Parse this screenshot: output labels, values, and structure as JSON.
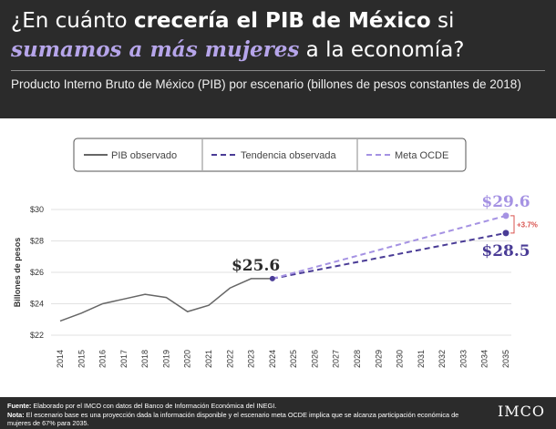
{
  "header": {
    "title_part1": "¿En cuánto ",
    "title_bold": "crecería el PIB de México",
    "title_part2": " si",
    "title_highlight": "sumamos a más mujeres",
    "title_part3": " a la economía?",
    "subtitle": "Producto Interno Bruto de México (PIB) por escenario (billones de pesos constantes de 2018)"
  },
  "footer": {
    "source_label": "Fuente:",
    "source_text": " Elaborado por el IMCO con datos del Banco de Información Económica del INEGI.",
    "note_label": "Nota:",
    "note_text": " El escenario base es una proyección dada la información disponible y el escenario meta OCDE implica que se alcanza participación económica de mujeres de 67% para 2035.",
    "logo_text": "IMCO"
  },
  "chart_data": {
    "type": "line",
    "ylabel": "Billones de pesos",
    "ylim": [
      22,
      31
    ],
    "yticks": [
      22,
      24,
      26,
      28,
      30
    ],
    "ytick_labels": [
      "$22",
      "$24",
      "$26",
      "$28",
      "$30"
    ],
    "x": [
      2014,
      2015,
      2016,
      2017,
      2018,
      2019,
      2020,
      2021,
      2022,
      2023,
      2024,
      2025,
      2026,
      2027,
      2028,
      2029,
      2030,
      2031,
      2032,
      2033,
      2034,
      2035
    ],
    "legend": [
      "PIB observado",
      "Tendencia observada",
      "Meta OCDE"
    ],
    "series": [
      {
        "name": "PIB observado",
        "color": "#666666",
        "style": "solid",
        "x": [
          2014,
          2015,
          2016,
          2017,
          2018,
          2019,
          2020,
          2021,
          2022,
          2023,
          2024
        ],
        "values": [
          22.9,
          23.4,
          24.0,
          24.3,
          24.6,
          24.4,
          23.5,
          23.9,
          25.0,
          25.6,
          25.6
        ]
      },
      {
        "name": "Tendencia observada",
        "color": "#4a3c96",
        "style": "dashed",
        "x": [
          2024,
          2035
        ],
        "values": [
          25.6,
          28.5
        ]
      },
      {
        "name": "Meta OCDE",
        "color": "#a592e3",
        "style": "dashed",
        "x": [
          2024,
          2035
        ],
        "values": [
          25.6,
          29.6
        ]
      }
    ],
    "annotations": {
      "label_2024": "$25.6",
      "label_ocde_2035": "$29.6",
      "label_trend_2035": "$28.5",
      "difference": "+3.7%"
    }
  }
}
